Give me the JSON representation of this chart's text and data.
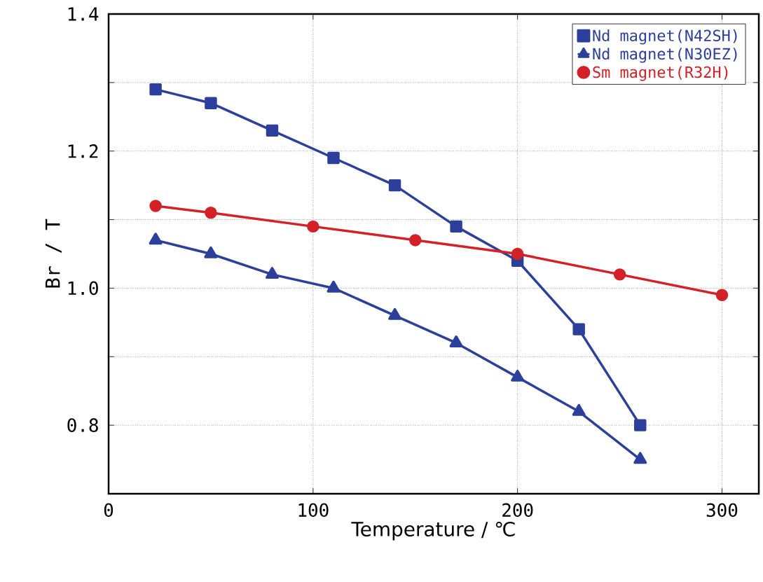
{
  "chart_data": {
    "type": "line",
    "xlabel": "Temperature / ℃",
    "ylabel": "Br / T",
    "xlim": [
      0,
      318
    ],
    "xticks": [
      0,
      100,
      200,
      300
    ],
    "ylim": [
      0.7,
      1.4
    ],
    "yticks": [
      {
        "value": 0.7,
        "label": null
      },
      0.8,
      {
        "value": 0.9,
        "label": null
      },
      {
        "value": 1.0,
        "label": "1.0"
      },
      {
        "value": 1.1,
        "label": null
      },
      1.2,
      {
        "value": 1.3,
        "label": null
      },
      1.4
    ],
    "grid": true,
    "legend": "top right",
    "line_style": "solid",
    "series": [
      {
        "name": "Nd magnet(N42SH)",
        "color": "#2b3f9b",
        "marker": "square",
        "x": [
          23,
          50,
          80,
          110,
          140,
          170,
          200,
          230,
          260
        ],
        "values": [
          1.29,
          1.27,
          1.23,
          1.19,
          1.15,
          1.09,
          1.04,
          0.94,
          0.8
        ]
      },
      {
        "name": "Nd magnet(N30EZ)",
        "color": "#2b3f9b",
        "marker": "triangle",
        "x": [
          23,
          50,
          80,
          110,
          140,
          170,
          200,
          230,
          260
        ],
        "values": [
          1.07,
          1.05,
          1.02,
          1.0,
          0.96,
          0.92,
          0.87,
          0.82,
          0.75
        ]
      },
      {
        "name": "Sm magnet(R32H)",
        "color": "#d42027",
        "marker": "circle",
        "x": [
          23,
          50,
          100,
          150,
          200,
          250,
          300
        ],
        "values": [
          1.12,
          1.11,
          1.09,
          1.07,
          1.05,
          1.02,
          0.99
        ]
      }
    ]
  }
}
